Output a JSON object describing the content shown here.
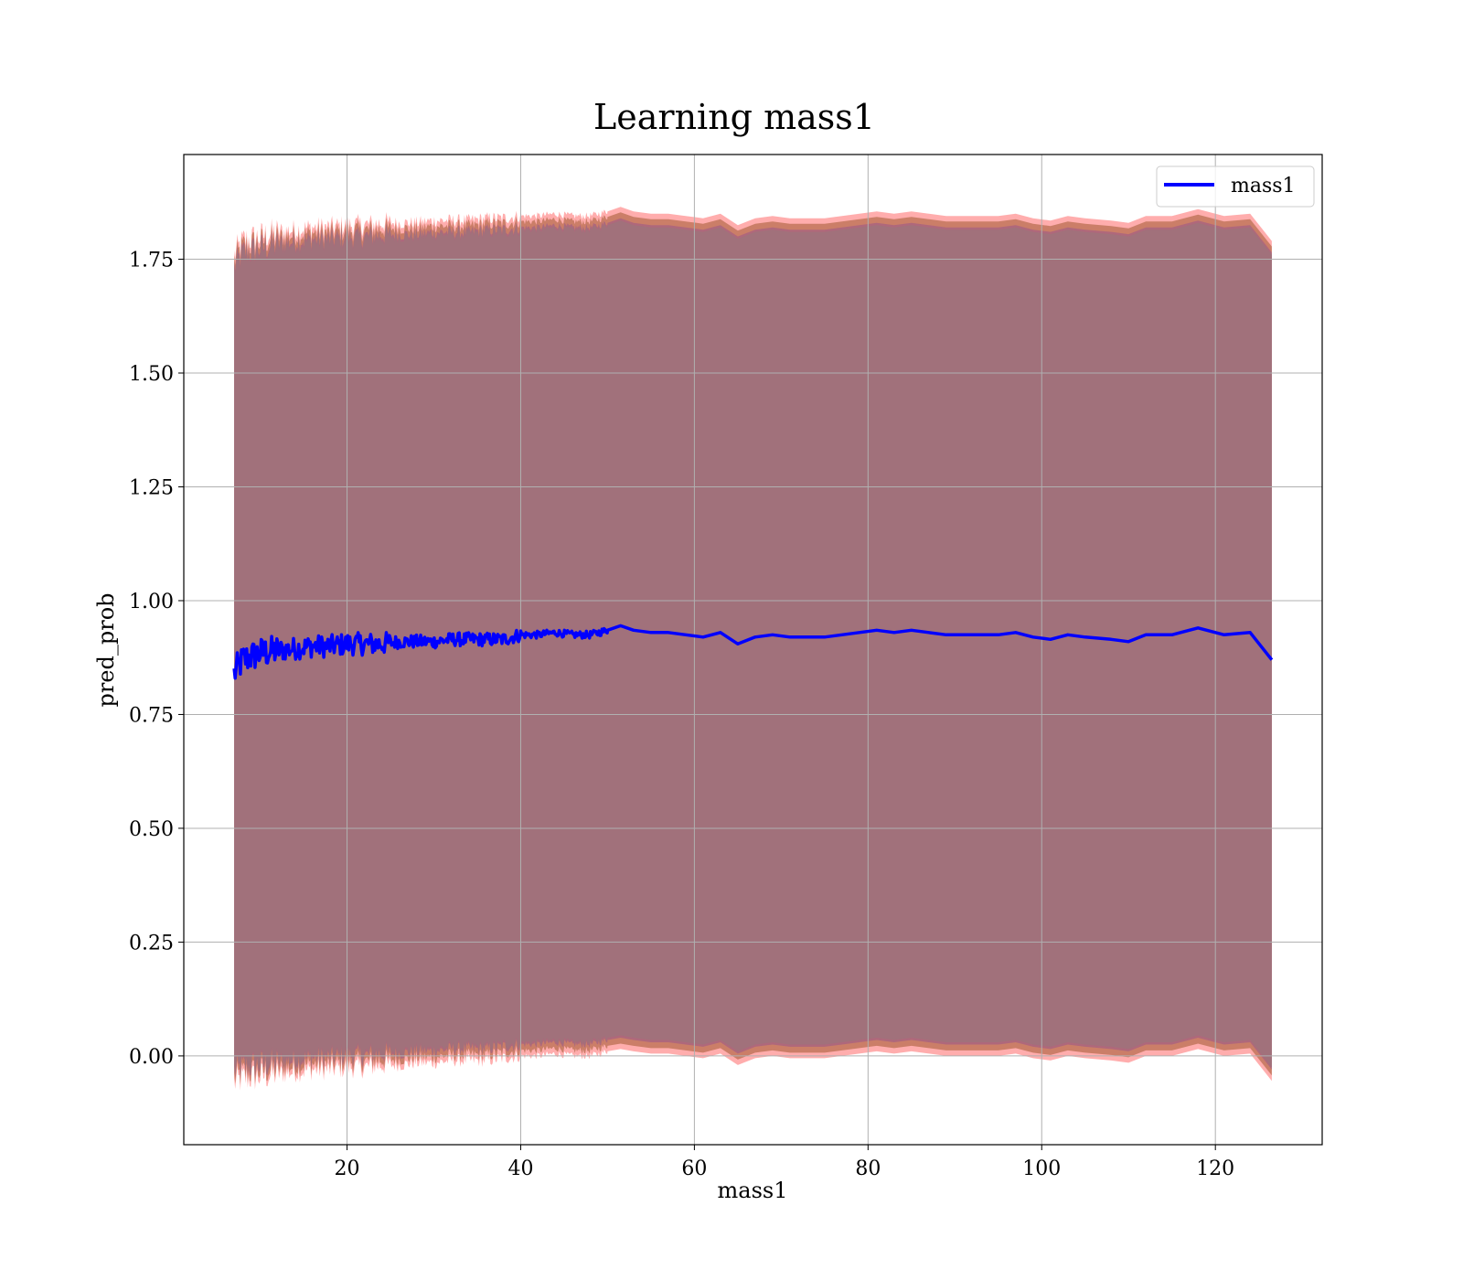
{
  "chart_data": {
    "type": "line",
    "title": "Learning mass1",
    "xlabel": "mass1",
    "ylabel": "pred_prob",
    "xlim": [
      1.2,
      132.3
    ],
    "ylim": [
      -0.195,
      1.98
    ],
    "xticks": [
      20,
      40,
      60,
      80,
      100,
      120
    ],
    "xtick_labels": [
      "20",
      "40",
      "60",
      "80",
      "100",
      "120"
    ],
    "yticks": [
      0.0,
      0.25,
      0.5,
      0.75,
      1.0,
      1.25,
      1.5,
      1.75
    ],
    "ytick_labels": [
      "0.00",
      "0.25",
      "0.50",
      "0.75",
      "1.00",
      "1.25",
      "1.50",
      "1.75"
    ],
    "grid": true,
    "legend": {
      "position": "top-right",
      "entries": [
        "mass1"
      ]
    },
    "colors": {
      "line": "#0000ff",
      "band_outer": "#ff0000",
      "band_inner": "#8b4513",
      "band_noise": "#7b3fa0",
      "band_main": "#a1717b",
      "grid": "#b0b0b0"
    },
    "series": [
      {
        "name": "mass1",
        "x": [
          7,
          8,
          10,
          12,
          14,
          16,
          18,
          20,
          22,
          24,
          26,
          28,
          30,
          32,
          34,
          36,
          38,
          40,
          42,
          44,
          46,
          48,
          50,
          51.5,
          53,
          55,
          57,
          59,
          61,
          63,
          65,
          67,
          69,
          71,
          73,
          75,
          77,
          79,
          81,
          83,
          85,
          87,
          89,
          91,
          93,
          95,
          97,
          99,
          101,
          103,
          105,
          108,
          110,
          112,
          115,
          118,
          121,
          124,
          126.5
        ],
        "y": [
          0.84,
          0.87,
          0.885,
          0.89,
          0.895,
          0.9,
          0.9,
          0.905,
          0.905,
          0.905,
          0.91,
          0.91,
          0.91,
          0.915,
          0.915,
          0.915,
          0.915,
          0.925,
          0.925,
          0.93,
          0.925,
          0.925,
          0.935,
          0.945,
          0.935,
          0.93,
          0.93,
          0.925,
          0.92,
          0.93,
          0.905,
          0.92,
          0.925,
          0.92,
          0.92,
          0.92,
          0.925,
          0.93,
          0.935,
          0.93,
          0.935,
          0.93,
          0.925,
          0.925,
          0.925,
          0.925,
          0.93,
          0.92,
          0.915,
          0.925,
          0.92,
          0.915,
          0.91,
          0.925,
          0.925,
          0.94,
          0.925,
          0.93,
          0.87
        ],
        "lower": [
          -0.06,
          -0.05,
          -0.045,
          -0.04,
          -0.035,
          -0.03,
          -0.03,
          -0.025,
          -0.025,
          -0.02,
          -0.02,
          -0.015,
          -0.015,
          -0.01,
          -0.01,
          -0.01,
          -0.005,
          0.0,
          0.0,
          0.005,
          0.0,
          0.0,
          0.01,
          0.015,
          0.01,
          0.005,
          0.005,
          0.0,
          -0.005,
          0.005,
          -0.02,
          -0.005,
          0.0,
          -0.005,
          -0.005,
          -0.005,
          0.0,
          0.005,
          0.01,
          0.005,
          0.01,
          0.005,
          0.0,
          0.0,
          0.0,
          0.0,
          0.005,
          -0.005,
          -0.01,
          0.0,
          -0.005,
          -0.01,
          -0.015,
          0.0,
          0.0,
          0.015,
          0.0,
          0.005,
          -0.055
        ],
        "upper": [
          1.76,
          1.79,
          1.8,
          1.81,
          1.815,
          1.82,
          1.82,
          1.825,
          1.825,
          1.83,
          1.83,
          1.83,
          1.835,
          1.835,
          1.835,
          1.84,
          1.84,
          1.845,
          1.845,
          1.85,
          1.845,
          1.845,
          1.855,
          1.865,
          1.855,
          1.85,
          1.85,
          1.845,
          1.84,
          1.85,
          1.825,
          1.84,
          1.845,
          1.84,
          1.84,
          1.84,
          1.845,
          1.85,
          1.855,
          1.85,
          1.855,
          1.85,
          1.845,
          1.845,
          1.845,
          1.845,
          1.85,
          1.84,
          1.835,
          1.845,
          1.84,
          1.835,
          1.83,
          1.845,
          1.845,
          1.86,
          1.845,
          1.85,
          1.79
        ]
      }
    ]
  }
}
